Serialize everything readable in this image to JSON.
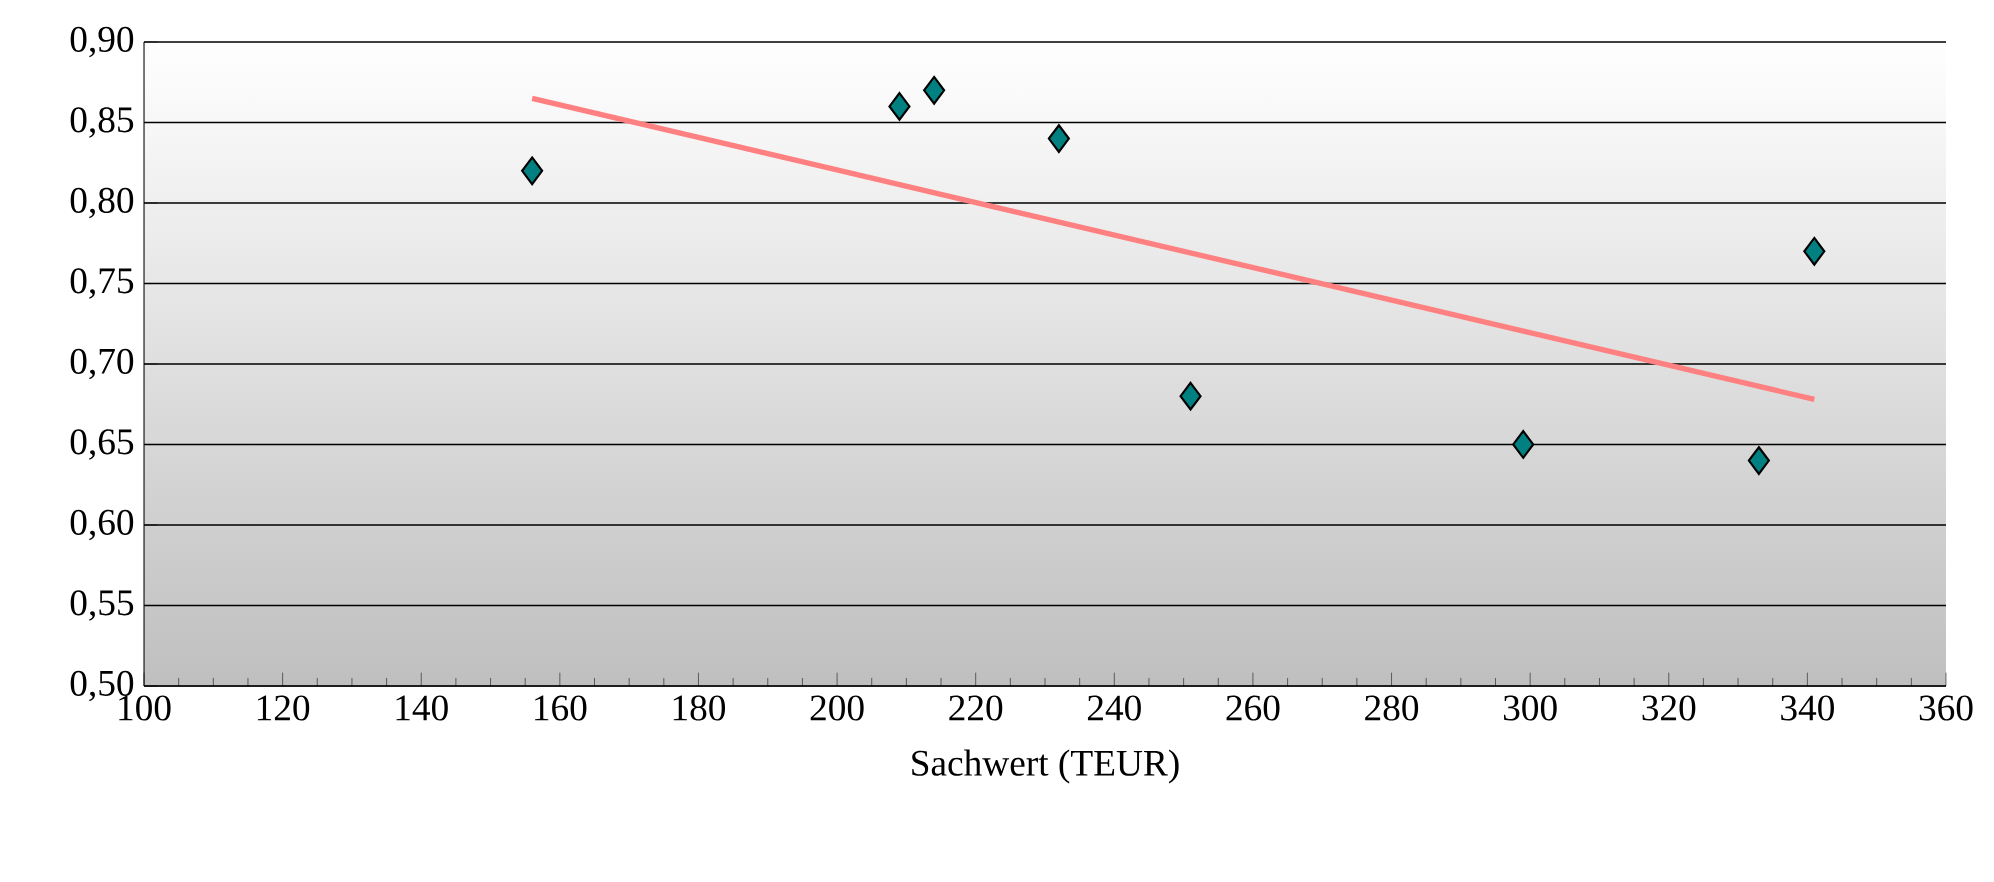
{
  "chart_data": {
    "type": "scatter",
    "xlabel": "Sachwert (TEUR)",
    "xlim": [
      100,
      360
    ],
    "ylim": [
      0.5,
      0.9
    ],
    "xticks": [
      100,
      120,
      140,
      160,
      180,
      200,
      220,
      240,
      260,
      280,
      300,
      320,
      340,
      360
    ],
    "yticks": [
      {
        "value": 0.5,
        "label": "0,50"
      },
      {
        "value": 0.55,
        "label": "0,55"
      },
      {
        "value": 0.6,
        "label": "0,60"
      },
      {
        "value": 0.65,
        "label": "0,65"
      },
      {
        "value": 0.7,
        "label": "0,70"
      },
      {
        "value": 0.75,
        "label": "0,75"
      },
      {
        "value": 0.8,
        "label": "0,80"
      },
      {
        "value": 0.85,
        "label": "0,85"
      },
      {
        "value": 0.9,
        "label": "0,90"
      }
    ],
    "grid": "y",
    "series": [
      {
        "marker": "diamond",
        "color": "#008080",
        "x": [
          156,
          209,
          214,
          232,
          251,
          299,
          333,
          341
        ],
        "values": [
          0.82,
          0.86,
          0.87,
          0.84,
          0.68,
          0.65,
          0.64,
          0.77
        ]
      },
      {
        "type": "line",
        "color": "#ff8080",
        "x": [
          156,
          341
        ],
        "values": [
          0.865,
          0.678
        ]
      }
    ]
  }
}
